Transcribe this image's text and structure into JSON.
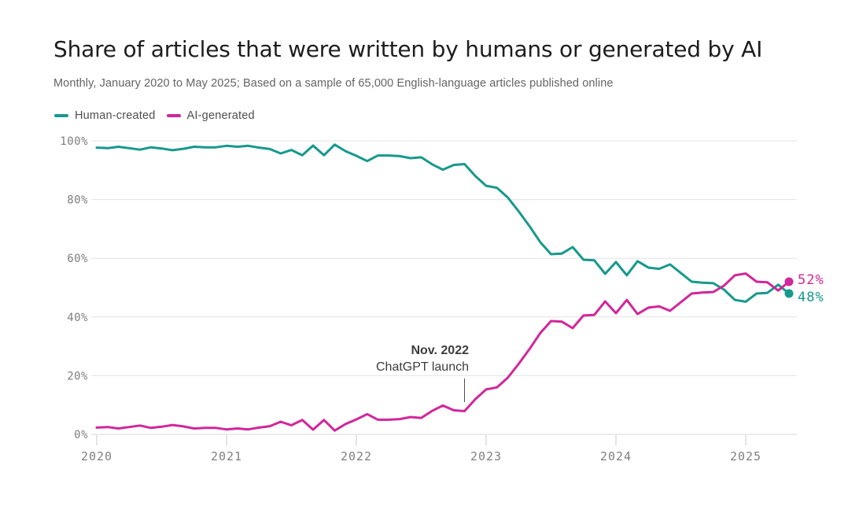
{
  "header": {
    "title": "Share of articles that were written by humans or generated by AI",
    "subtitle": "Monthly, January 2020 to May 2025; Based on a sample of 65,000 English-language articles published online"
  },
  "legend": {
    "items": [
      {
        "label": "Human-created",
        "color": "#16998c"
      },
      {
        "label": "AI-generated",
        "color": "#d2269a"
      }
    ]
  },
  "annotation": {
    "title": "Nov. 2022",
    "subtitle": "ChatGPT launch",
    "target_month": "2022-11"
  },
  "end_labels": {
    "ai": "52%",
    "human": "48%"
  },
  "chart_data": {
    "type": "line",
    "title": "Share of articles that were written by humans or generated by AI",
    "subtitle": "Monthly, January 2020 to May 2025; Based on a sample of 65,000 English-language articles published online",
    "x_tick_labels": [
      "2020",
      "2021",
      "2022",
      "2023",
      "2024",
      "2025"
    ],
    "y_ticks": [
      0,
      20,
      40,
      60,
      80,
      100
    ],
    "y_tick_labels": [
      "0%",
      "20%",
      "40%",
      "60%",
      "80%",
      "100%"
    ],
    "ylim": [
      0,
      100
    ],
    "grid": "horizontal",
    "legend_position": "top-left",
    "months": [
      "2020-01",
      "2020-02",
      "2020-03",
      "2020-04",
      "2020-05",
      "2020-06",
      "2020-07",
      "2020-08",
      "2020-09",
      "2020-10",
      "2020-11",
      "2020-12",
      "2021-01",
      "2021-02",
      "2021-03",
      "2021-04",
      "2021-05",
      "2021-06",
      "2021-07",
      "2021-08",
      "2021-09",
      "2021-10",
      "2021-11",
      "2021-12",
      "2022-01",
      "2022-02",
      "2022-03",
      "2022-04",
      "2022-05",
      "2022-06",
      "2022-07",
      "2022-08",
      "2022-09",
      "2022-10",
      "2022-11",
      "2022-12",
      "2023-01",
      "2023-02",
      "2023-03",
      "2023-04",
      "2023-05",
      "2023-06",
      "2023-07",
      "2023-08",
      "2023-09",
      "2023-10",
      "2023-11",
      "2023-12",
      "2024-01",
      "2024-02",
      "2024-03",
      "2024-04",
      "2024-05",
      "2024-06",
      "2024-07",
      "2024-08",
      "2024-09",
      "2024-10",
      "2024-11",
      "2024-12",
      "2025-01",
      "2025-02",
      "2025-03",
      "2025-04",
      "2025-05"
    ],
    "series": [
      {
        "name": "Human-created",
        "color": "#16998c",
        "end_label": "48%",
        "values": [
          97.7,
          97.5,
          98.0,
          97.5,
          97.0,
          97.8,
          97.4,
          96.8,
          97.3,
          98.0,
          97.8,
          97.8,
          98.3,
          98.0,
          98.3,
          97.7,
          97.2,
          95.7,
          96.9,
          95.1,
          98.4,
          95.1,
          98.7,
          96.5,
          94.9,
          93.1,
          95.0,
          95.0,
          94.8,
          94.1,
          94.4,
          92.0,
          90.2,
          91.8,
          92.1,
          88.0,
          84.7,
          84.0,
          80.7,
          76.0,
          71.0,
          65.5,
          61.4,
          61.6,
          63.8,
          59.5,
          59.3,
          54.7,
          58.7,
          54.2,
          59.0,
          56.8,
          56.4,
          57.9,
          55.0,
          52.0,
          51.7,
          51.5,
          49.3,
          45.8,
          45.2,
          48.0,
          48.2,
          51.0,
          48.0
        ]
      },
      {
        "name": "AI-generated",
        "color": "#d2269a",
        "end_label": "52%",
        "values": [
          2.3,
          2.5,
          2.0,
          2.5,
          3.0,
          2.2,
          2.6,
          3.2,
          2.7,
          2.0,
          2.2,
          2.2,
          1.7,
          2.0,
          1.7,
          2.3,
          2.8,
          4.3,
          3.1,
          4.9,
          1.6,
          4.9,
          1.3,
          3.5,
          5.1,
          6.9,
          5.0,
          5.0,
          5.2,
          5.9,
          5.6,
          8.0,
          9.8,
          8.2,
          7.9,
          12.0,
          15.3,
          16.0,
          19.3,
          24.0,
          29.0,
          34.5,
          38.6,
          38.4,
          36.2,
          40.5,
          40.7,
          45.3,
          41.3,
          45.8,
          41.0,
          43.2,
          43.6,
          42.1,
          45.0,
          48.0,
          48.3,
          48.5,
          50.7,
          54.2,
          54.8,
          52.0,
          51.8,
          49.0,
          52.0
        ]
      }
    ],
    "annotations": [
      {
        "text": "Nov. 2022 ChatGPT launch",
        "month": "2022-11"
      }
    ]
  }
}
